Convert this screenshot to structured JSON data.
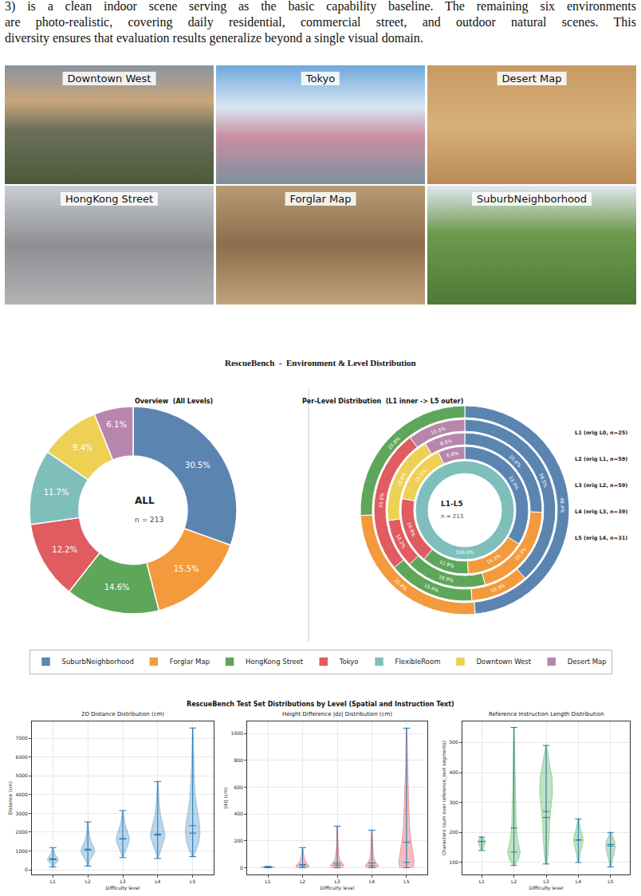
{
  "paragraph": [
    "3) is a clean indoor scene serving as the basic capability baseline. The remaining six environments",
    "are photo-realistic, covering daily residential, commercial street, and outdoor natural scenes. This",
    "diversity ensures that evaluation results generalize beyond a single visual domain."
  ],
  "images": [
    "Downtown West",
    "Tokyo",
    "Desert Map",
    "HongKong Street",
    "Forglar Map",
    "SuburbNeighborhood"
  ],
  "figure_titles": {
    "distribution": "RescueBench  -  Environment & Level Distribution",
    "test_set": "RescueBench Test Set Distributions by Level (Spatial and Instruction Text)"
  },
  "chart_data": [
    {
      "type": "pie",
      "title": "Overview  (All Levels)",
      "center_text": [
        "ALL",
        "n = 213"
      ],
      "categories": [
        "SuburbNeighborhood",
        "Forglar Map",
        "HongKong Street",
        "Tokyo",
        "FlexibleRoom",
        "Downtown West",
        "Desert Map"
      ],
      "values": [
        30.5,
        15.5,
        14.6,
        12.2,
        11.7,
        9.4,
        6.1
      ],
      "value_labels": [
        "30.5%",
        "15.5%",
        "14.6%",
        "12.2%",
        "11.7%",
        "9.4%",
        "6.1%"
      ],
      "colors": [
        "#5b84b1",
        "#f39a3d",
        "#5ea65a",
        "#e05c61",
        "#7fbfbb",
        "#eed055",
        "#b886ad"
      ],
      "data_labels": true,
      "legend": "bottom"
    },
    {
      "type": "nested_pie",
      "title": "Per-Level Distribution  (L1 inner -> L5 outer)",
      "center_text": [
        "L1-L5",
        "n = 213"
      ],
      "data_labels": true,
      "rings": [
        {
          "label": "L1 (orig L0, n=25)",
          "categories": [
            "FlexibleRoom"
          ],
          "values": [
            100.0
          ],
          "value_labels": [
            "100.0%"
          ]
        },
        {
          "label": "L2 (orig L1, n=59)",
          "categories": [
            "SuburbNeighborhood",
            "Forglar Map",
            "HongKong Street",
            "Tokyo",
            "Downtown West",
            "Desert Map"
          ],
          "values": [
            33.9,
            15.3,
            11.9,
            16.9,
            15.3,
            6.8
          ],
          "value_labels": [
            "33.9%",
            "15.3%",
            "11.9%",
            "16.9%",
            "15.3%",
            "6.8%"
          ]
        },
        {
          "label": "L3 (orig L2, n=59)",
          "categories": [
            "SuburbNeighborhood",
            "Forglar Map",
            "HongKong Street",
            "Tokyo",
            "Downtown West",
            "Desert Map"
          ],
          "values": [
            25.4,
            20.3,
            16.9,
            10.2,
            18.6,
            8.5
          ],
          "value_labels": [
            "25.4%",
            "20.3%",
            "16.9%",
            "10.2%",
            "18.6%",
            "8.5%"
          ]
        },
        {
          "label": "L4 (orig L3, n=39)",
          "categories": [
            "SuburbNeighborhood",
            "Forglar Map",
            "HongKong Street",
            "Tokyo",
            "Desert Map"
          ],
          "values": [
            38.5,
            10.3,
            15.4,
            25.6,
            10.3
          ],
          "value_labels": [
            "38.5%",
            "10.3%",
            "15.4%",
            "25.6%",
            "10.3%"
          ]
        },
        {
          "label": "L5 (orig L4, n=31)",
          "categories": [
            "SuburbNeighborhood",
            "Forglar Map",
            "HongKong Street"
          ],
          "values": [
            48.4,
            25.8,
            25.8
          ],
          "value_labels": [
            "48.4%",
            "25.8%",
            "25.8%"
          ]
        }
      ]
    },
    {
      "type": "violin",
      "title": "2D Distance Distribution (cm)",
      "x_label": "Difficulty level",
      "y_label": "Distance (cm)",
      "categories": [
        "L1",
        "L2",
        "L3",
        "L4",
        "L5"
      ],
      "color": "#1f77b4",
      "grid": true,
      "ylim": [
        -250,
        7900
      ],
      "yticks": [
        0,
        1000,
        2000,
        3000,
        4000,
        5000,
        6000,
        7000
      ],
      "violins": [
        {
          "min": 150,
          "max": 1180,
          "median": 540,
          "mean": 590,
          "density": {
            "y": [
              150,
              300,
              450,
              550,
              650,
              800,
              1000,
              1180
            ],
            "half_width": [
              0.01,
              0.06,
              0.13,
              0.16,
              0.13,
              0.07,
              0.03,
              0.01
            ]
          }
        },
        {
          "min": 200,
          "max": 2550,
          "median": 1050,
          "mean": 1100,
          "density": {
            "y": [
              200,
              500,
              800,
              1000,
              1200,
              1500,
              1900,
              2300,
              2550
            ],
            "half_width": [
              0.01,
              0.06,
              0.16,
              0.2,
              0.17,
              0.09,
              0.04,
              0.02,
              0.01
            ]
          }
        },
        {
          "min": 650,
          "max": 3150,
          "median": 1650,
          "mean": 1650,
          "density": {
            "y": [
              650,
              900,
              1200,
              1500,
              1700,
              2000,
              2400,
              2800,
              3150
            ],
            "half_width": [
              0.01,
              0.05,
              0.12,
              0.18,
              0.19,
              0.14,
              0.07,
              0.03,
              0.01
            ]
          }
        },
        {
          "min": 600,
          "max": 4700,
          "median": 1850,
          "mean": 1900,
          "density": {
            "y": [
              600,
              900,
              1300,
              1700,
              1900,
              2300,
              2900,
              3600,
              4200,
              4700
            ],
            "half_width": [
              0.01,
              0.05,
              0.13,
              0.2,
              0.21,
              0.16,
              0.08,
              0.04,
              0.02,
              0.01
            ]
          }
        },
        {
          "min": 700,
          "max": 7550,
          "median": 1950,
          "mean": 2350,
          "density": {
            "y": [
              700,
              1100,
              1500,
              2000,
              2500,
              3000,
              3800,
              4700,
              5600,
              6500,
              7550
            ],
            "half_width": [
              0.02,
              0.11,
              0.18,
              0.21,
              0.19,
              0.14,
              0.08,
              0.05,
              0.03,
              0.02,
              0.01
            ]
          }
        }
      ]
    },
    {
      "type": "violin",
      "title": "Height Difference |dz| Distribution (cm)",
      "x_label": "Difficulty level",
      "y_label": "|dz| (cm)",
      "categories": [
        "L1",
        "L2",
        "L3",
        "L4",
        "L5"
      ],
      "color": "#d62728",
      "grid": true,
      "ylim": [
        -50,
        1090
      ],
      "yticks": [
        0,
        200,
        400,
        600,
        800,
        1000
      ],
      "violins": [
        {
          "min": 0,
          "max": 10,
          "median": 5,
          "mean": 5,
          "density": {
            "y": [
              0,
              3,
              5,
              7,
              10
            ],
            "half_width": [
              0.05,
              0.15,
              0.2,
              0.15,
              0.05
            ]
          }
        },
        {
          "min": 0,
          "max": 150,
          "median": 15,
          "mean": 25,
          "density": {
            "y": [
              0,
              10,
              25,
              45,
              70,
              100,
              150
            ],
            "half_width": [
              0.12,
              0.2,
              0.16,
              0.09,
              0.05,
              0.03,
              0.01
            ]
          }
        },
        {
          "min": 0,
          "max": 310,
          "median": 20,
          "mean": 35,
          "density": {
            "y": [
              0,
              15,
              35,
              60,
              100,
              160,
              230,
              310
            ],
            "half_width": [
              0.14,
              0.2,
              0.14,
              0.07,
              0.04,
              0.02,
              0.015,
              0.01
            ]
          }
        },
        {
          "min": 0,
          "max": 280,
          "median": 15,
          "mean": 35,
          "density": {
            "y": [
              0,
              15,
              35,
              60,
              100,
              150,
              210,
              280
            ],
            "half_width": [
              0.13,
              0.2,
              0.13,
              0.07,
              0.04,
              0.03,
              0.02,
              0.01
            ]
          }
        },
        {
          "min": 0,
          "max": 1040,
          "median": 40,
          "mean": 190,
          "density": {
            "y": [
              0,
              50,
              120,
              200,
              300,
              400,
              500,
              600,
              700,
              850,
              1040
            ],
            "half_width": [
              0.2,
              0.22,
              0.18,
              0.13,
              0.09,
              0.07,
              0.06,
              0.05,
              0.03,
              0.02,
              0.01
            ]
          }
        }
      ]
    },
    {
      "type": "violin",
      "title": "Reference Instruction Length Distribution",
      "x_label": "Difficulty level",
      "y_label": "Characters (sum over reference_text segments)",
      "categories": [
        "L1",
        "L2",
        "L3",
        "L4",
        "L5"
      ],
      "color": "#2ca02c",
      "grid": true,
      "ylim": [
        60,
        570
      ],
      "yticks": [
        100,
        200,
        300,
        400,
        500
      ],
      "violins": [
        {
          "min": 140,
          "max": 185,
          "median": 170,
          "mean": 170,
          "density": {
            "y": [
              140,
              150,
              160,
              170,
              178,
              185
            ],
            "half_width": [
              0.02,
              0.05,
              0.09,
              0.12,
              0.08,
              0.03
            ]
          }
        },
        {
          "min": 90,
          "max": 550,
          "median": 135,
          "mean": 215,
          "density": {
            "y": [
              90,
              110,
              135,
              170,
              220,
              280,
              350,
              420,
              490,
              550
            ],
            "half_width": [
              0.02,
              0.14,
              0.2,
              0.12,
              0.07,
              0.05,
              0.04,
              0.03,
              0.02,
              0.01
            ]
          }
        },
        {
          "min": 95,
          "max": 490,
          "median": 250,
          "mean": 270,
          "density": {
            "y": [
              95,
              130,
              180,
              230,
              280,
              330,
              380,
              420,
              460,
              490
            ],
            "half_width": [
              0.02,
              0.06,
              0.09,
              0.11,
              0.15,
              0.2,
              0.19,
              0.12,
              0.05,
              0.01
            ]
          }
        },
        {
          "min": 100,
          "max": 245,
          "median": 175,
          "mean": 175,
          "density": {
            "y": [
              100,
              130,
              160,
              175,
              190,
              215,
              245
            ],
            "half_width": [
              0.02,
              0.06,
              0.13,
              0.15,
              0.13,
              0.06,
              0.02
            ]
          }
        },
        {
          "min": 85,
          "max": 200,
          "median": 155,
          "mean": 160,
          "density": {
            "y": [
              85,
              110,
              135,
              155,
              170,
              185,
              200
            ],
            "half_width": [
              0.02,
              0.06,
              0.12,
              0.15,
              0.13,
              0.08,
              0.02
            ]
          }
        }
      ]
    }
  ]
}
